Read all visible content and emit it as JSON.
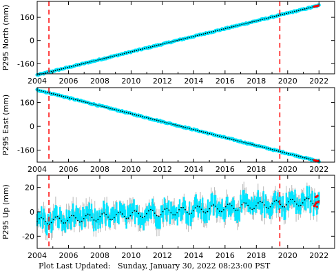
{
  "footer": {
    "label": "Plot Last Updated:",
    "timestamp": "Sunday, January 30, 2022 08:23:00 PST"
  },
  "colors": {
    "daily": "#00e5ff",
    "trend": "#000000",
    "errorbar": "#b8b8b8",
    "recent": "#ff0000",
    "event_line": "#ff0000"
  },
  "chart_data": [
    {
      "type": "scatter",
      "ylabel": "P295 North (mm)",
      "xlim": [
        2004.0,
        2023.0
      ],
      "ylim": [
        -230,
        270
      ],
      "xticks": [
        2004,
        2006,
        2008,
        2010,
        2012,
        2014,
        2016,
        2018,
        2020,
        2022
      ],
      "yticks": [
        -160,
        0,
        160
      ],
      "event_lines": [
        2004.75,
        2019.5
      ],
      "series": [
        {
          "start": [
            2004.0,
            -238
          ],
          "end": [
            2022.0,
            242
          ],
          "noise": 4
        }
      ]
    },
    {
      "type": "scatter",
      "ylabel": "P295 East (mm)",
      "xlim": [
        2004.0,
        2023.0
      ],
      "ylim": [
        -240,
        260
      ],
      "xticks": [
        2004,
        2006,
        2008,
        2010,
        2012,
        2014,
        2016,
        2018,
        2020,
        2022
      ],
      "yticks": [
        -160,
        0,
        160
      ],
      "event_lines": [
        2004.75,
        2019.5
      ],
      "series": [
        {
          "start": [
            2004.0,
            245
          ],
          "end": [
            2022.0,
            -235
          ],
          "noise": 4
        }
      ]
    },
    {
      "type": "scatter",
      "ylabel": "P295 Up (mm)",
      "xlim": [
        2004.0,
        2023.0
      ],
      "ylim": [
        -30,
        30
      ],
      "xticks": [
        2004,
        2006,
        2008,
        2010,
        2012,
        2014,
        2016,
        2018,
        2020,
        2022
      ],
      "yticks": [
        -20,
        0,
        20
      ],
      "event_lines": [
        2004.75,
        2019.5
      ],
      "series": [
        {
          "start": [
            2004.0,
            -8
          ],
          "end": [
            2022.0,
            9
          ],
          "noise": 6,
          "seasonal": 3
        }
      ]
    }
  ]
}
